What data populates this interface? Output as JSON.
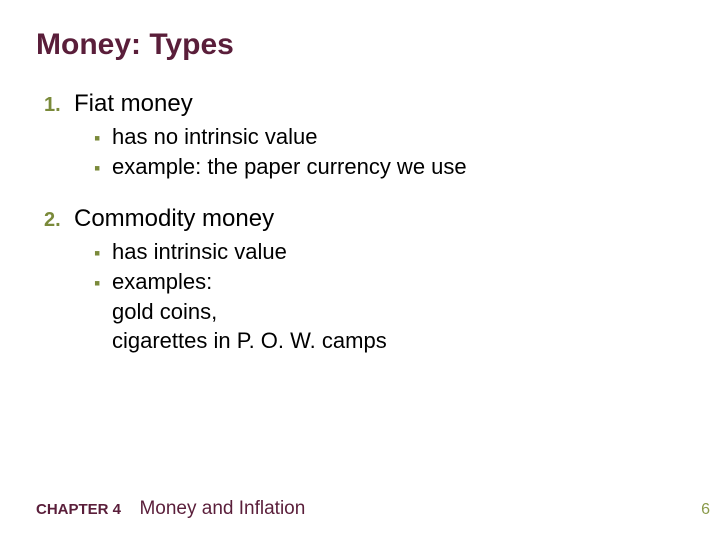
{
  "colors": {
    "title": "#5a1e3a",
    "number": "#7a8a3a",
    "body": "#000000",
    "bullet": "#7a8a3a",
    "chapter_label": "#5a1e3a",
    "chapter_title": "#5a1e3a",
    "page_num": "#8a9a4a",
    "background": "#ffffff"
  },
  "title": "Money:  Types",
  "items": [
    {
      "num": "1.",
      "label": "Fiat money",
      "subs": [
        {
          "text": "has no intrinsic value"
        },
        {
          "text": "example:  the paper currency we use"
        }
      ]
    },
    {
      "num": "2.",
      "label": "Commodity money",
      "subs": [
        {
          "text": "has intrinsic value"
        },
        {
          "text": "examples:",
          "extra": [
            "gold coins,",
            "cigarettes in P. O. W. camps"
          ]
        }
      ]
    }
  ],
  "footer": {
    "chapter_label": "CHAPTER 4",
    "chapter_title": "Money and Inflation",
    "page": "6"
  },
  "typography": {
    "title_fontsize": 30,
    "item_fontsize": 24,
    "sub_fontsize": 22,
    "footer_label_fontsize": 15,
    "footer_title_fontsize": 19
  }
}
